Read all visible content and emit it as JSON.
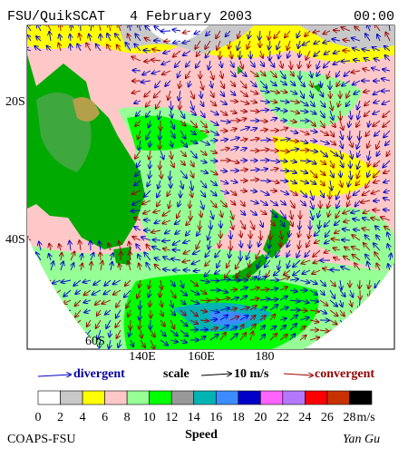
{
  "header": {
    "source": "FSU/QuikSCAT",
    "date": "4 February 2003",
    "time": "00:00"
  },
  "map": {
    "lat_labels": [
      "20S",
      "40S",
      "60S"
    ],
    "lon_labels": [
      "140E",
      "160E",
      "180"
    ]
  },
  "legend": {
    "divergent": "divergent",
    "scale": "scale",
    "scale_value": "10 m/s",
    "convergent": "convergent"
  },
  "colorbar": {
    "colors": [
      "#ffffff",
      "#c8c8c8",
      "#ffff00",
      "#ffc8c8",
      "#96ff96",
      "#00ff00",
      "#999999",
      "#00b4b4",
      "#3c8cff",
      "#0000c8",
      "#ff64ff",
      "#b478ff",
      "#ff0000",
      "#c83200",
      "#000000"
    ],
    "ticks": [
      0,
      2,
      4,
      6,
      8,
      10,
      12,
      14,
      16,
      18,
      20,
      22,
      24,
      26,
      28
    ],
    "unit": "m/s",
    "label": "Speed"
  },
  "footer": {
    "left": "COAPS-FSU",
    "right": "Yan Gu"
  }
}
